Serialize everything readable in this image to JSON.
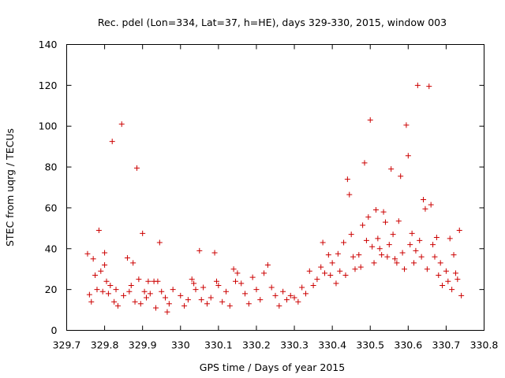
{
  "chart_data": {
    "type": "scatter",
    "title": "Rec. pdel (Lon=334, Lat=37, h=HE), days 329-330, 2015, window 003",
    "xlabel": "GPS time / Days of year 2015",
    "ylabel": "STEC from uqrg / TECUs",
    "xlim": [
      329.7,
      330.8
    ],
    "ylim": [
      0,
      140
    ],
    "xticks": [
      "329.7",
      "329.8",
      "329.9",
      "330",
      "330.1",
      "330.2",
      "330.3",
      "330.4",
      "330.5",
      "330.6",
      "330.7",
      "330.8"
    ],
    "yticks": [
      "0",
      "20",
      "40",
      "60",
      "80",
      "100",
      "120",
      "140"
    ],
    "marker": "+",
    "color": "#cc0000",
    "grid": false,
    "series": [
      {
        "points": [
          [
            329.755,
            37.5
          ],
          [
            329.76,
            17.5
          ],
          [
            329.765,
            14
          ],
          [
            329.77,
            35
          ],
          [
            329.775,
            27
          ],
          [
            329.78,
            20
          ],
          [
            329.785,
            49
          ],
          [
            329.79,
            29
          ],
          [
            329.795,
            19
          ],
          [
            329.8,
            38
          ],
          [
            329.8,
            32
          ],
          [
            329.805,
            24
          ],
          [
            329.81,
            18
          ],
          [
            329.815,
            22
          ],
          [
            329.82,
            92.5
          ],
          [
            329.825,
            14
          ],
          [
            329.83,
            20
          ],
          [
            329.835,
            12
          ],
          [
            329.845,
            101
          ],
          [
            329.85,
            17
          ],
          [
            329.86,
            35.5
          ],
          [
            329.865,
            19
          ],
          [
            329.87,
            22
          ],
          [
            329.875,
            33
          ],
          [
            329.88,
            14
          ],
          [
            329.885,
            79.5
          ],
          [
            329.89,
            25
          ],
          [
            329.895,
            13
          ],
          [
            329.9,
            47.5
          ],
          [
            329.905,
            19
          ],
          [
            329.91,
            16
          ],
          [
            329.915,
            24
          ],
          [
            329.92,
            18
          ],
          [
            329.93,
            24
          ],
          [
            329.935,
            11
          ],
          [
            329.94,
            24
          ],
          [
            329.945,
            43
          ],
          [
            329.95,
            19
          ],
          [
            329.96,
            16
          ],
          [
            329.965,
            9
          ],
          [
            329.97,
            13
          ],
          [
            329.98,
            20
          ],
          [
            330.0,
            17
          ],
          [
            330.01,
            12
          ],
          [
            330.02,
            15
          ],
          [
            330.03,
            25
          ],
          [
            330.035,
            23
          ],
          [
            330.04,
            20
          ],
          [
            330.05,
            39
          ],
          [
            330.055,
            15
          ],
          [
            330.06,
            21
          ],
          [
            330.07,
            13
          ],
          [
            330.08,
            16
          ],
          [
            330.09,
            38
          ],
          [
            330.095,
            24
          ],
          [
            330.1,
            22
          ],
          [
            330.11,
            14
          ],
          [
            330.12,
            19
          ],
          [
            330.13,
            12
          ],
          [
            330.14,
            30
          ],
          [
            330.145,
            24
          ],
          [
            330.15,
            28
          ],
          [
            330.16,
            23
          ],
          [
            330.17,
            18
          ],
          [
            330.18,
            13
          ],
          [
            330.19,
            26
          ],
          [
            330.2,
            20
          ],
          [
            330.21,
            15
          ],
          [
            330.22,
            28
          ],
          [
            330.23,
            32
          ],
          [
            330.24,
            21
          ],
          [
            330.25,
            17
          ],
          [
            330.26,
            12
          ],
          [
            330.27,
            19
          ],
          [
            330.28,
            15
          ],
          [
            330.29,
            17
          ],
          [
            330.3,
            16
          ],
          [
            330.31,
            14
          ],
          [
            330.32,
            21
          ],
          [
            330.33,
            18
          ],
          [
            330.34,
            29
          ],
          [
            330.35,
            22
          ],
          [
            330.36,
            25
          ],
          [
            330.37,
            31
          ],
          [
            330.375,
            43
          ],
          [
            330.38,
            28
          ],
          [
            330.39,
            37
          ],
          [
            330.395,
            27
          ],
          [
            330.4,
            33
          ],
          [
            330.41,
            23
          ],
          [
            330.415,
            37.5
          ],
          [
            330.42,
            29
          ],
          [
            330.43,
            43
          ],
          [
            330.435,
            27
          ],
          [
            330.44,
            74
          ],
          [
            330.445,
            66.5
          ],
          [
            330.45,
            47
          ],
          [
            330.455,
            36
          ],
          [
            330.46,
            30
          ],
          [
            330.47,
            37
          ],
          [
            330.475,
            31
          ],
          [
            330.48,
            51.5
          ],
          [
            330.485,
            82
          ],
          [
            330.49,
            44
          ],
          [
            330.495,
            55.5
          ],
          [
            330.5,
            103
          ],
          [
            330.505,
            41
          ],
          [
            330.51,
            33
          ],
          [
            330.515,
            59
          ],
          [
            330.52,
            45
          ],
          [
            330.525,
            40
          ],
          [
            330.53,
            37
          ],
          [
            330.535,
            58
          ],
          [
            330.54,
            53
          ],
          [
            330.545,
            36
          ],
          [
            330.55,
            42
          ],
          [
            330.555,
            79
          ],
          [
            330.56,
            47
          ],
          [
            330.565,
            35
          ],
          [
            330.57,
            33
          ],
          [
            330.575,
            53.5
          ],
          [
            330.58,
            75.5
          ],
          [
            330.585,
            38
          ],
          [
            330.59,
            30
          ],
          [
            330.595,
            100.5
          ],
          [
            330.6,
            85.5
          ],
          [
            330.605,
            42
          ],
          [
            330.61,
            47.5
          ],
          [
            330.615,
            33
          ],
          [
            330.62,
            39
          ],
          [
            330.625,
            120
          ],
          [
            330.63,
            44
          ],
          [
            330.635,
            36
          ],
          [
            330.64,
            64
          ],
          [
            330.645,
            59.5
          ],
          [
            330.65,
            30
          ],
          [
            330.655,
            119.5
          ],
          [
            330.66,
            61.5
          ],
          [
            330.665,
            42
          ],
          [
            330.67,
            36
          ],
          [
            330.675,
            45.5
          ],
          [
            330.68,
            27
          ],
          [
            330.685,
            33
          ],
          [
            330.69,
            22
          ],
          [
            330.7,
            29
          ],
          [
            330.705,
            24
          ],
          [
            330.71,
            45
          ],
          [
            330.715,
            20
          ],
          [
            330.72,
            37
          ],
          [
            330.725,
            28
          ],
          [
            330.73,
            25
          ],
          [
            330.735,
            49
          ],
          [
            330.74,
            17
          ]
        ]
      }
    ]
  }
}
